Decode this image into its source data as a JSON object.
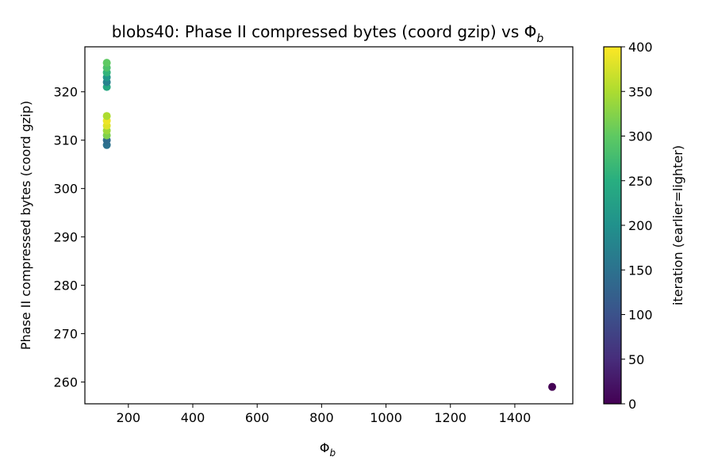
{
  "chart_data": {
    "type": "scatter",
    "title": "blobs40: Phase II compressed bytes (coord gzip) vs Φ",
    "title_sub": "b",
    "xlabel": "Φ",
    "xlabel_sub": "b",
    "ylabel": "Phase II compressed bytes (coord gzip)",
    "xlim": [
      65,
      1580
    ],
    "ylim": [
      255.5,
      329.3
    ],
    "xticks": [
      200,
      400,
      600,
      800,
      1000,
      1200,
      1400
    ],
    "yticks": [
      260,
      270,
      280,
      290,
      300,
      310,
      320
    ],
    "grid": false,
    "colorbar": {
      "label": "iteration (earlier=lighter)",
      "colormap": "viridis",
      "range": [
        0,
        400
      ],
      "ticks": [
        0,
        50,
        100,
        150,
        200,
        250,
        300,
        350,
        400
      ]
    },
    "points": [
      {
        "x": 1516,
        "y": 259,
        "c": 0
      },
      {
        "x": 133,
        "y": 309,
        "c": 150
      },
      {
        "x": 133,
        "y": 310,
        "c": 140
      },
      {
        "x": 133,
        "y": 311,
        "c": 320
      },
      {
        "x": 133,
        "y": 312,
        "c": 340
      },
      {
        "x": 133,
        "y": 313,
        "c": 380
      },
      {
        "x": 133,
        "y": 314,
        "c": 390
      },
      {
        "x": 133,
        "y": 315,
        "c": 350
      },
      {
        "x": 133,
        "y": 321,
        "c": 240
      },
      {
        "x": 133,
        "y": 322,
        "c": 175
      },
      {
        "x": 133,
        "y": 323,
        "c": 210
      },
      {
        "x": 133,
        "y": 324,
        "c": 260
      },
      {
        "x": 133,
        "y": 325,
        "c": 285
      },
      {
        "x": 133,
        "y": 326,
        "c": 300
      }
    ]
  }
}
